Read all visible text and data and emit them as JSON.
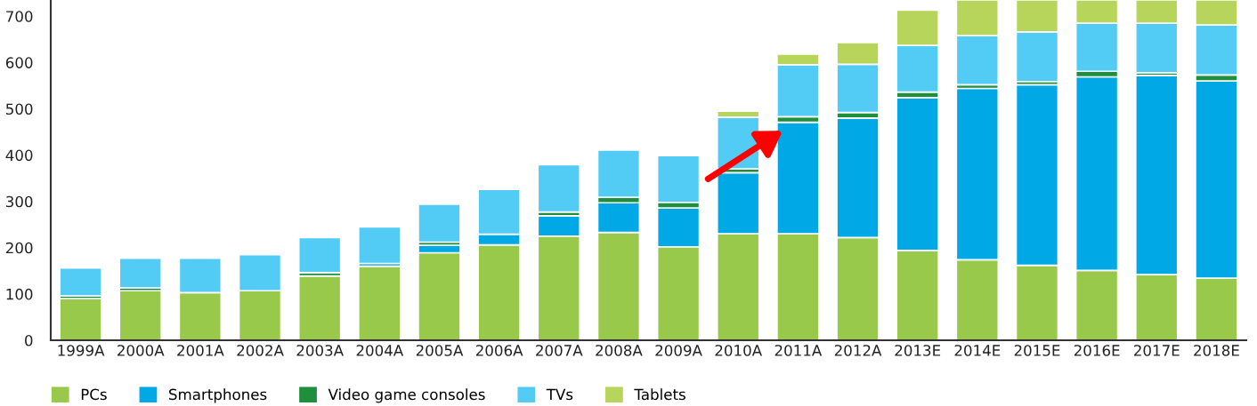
{
  "chart_data": {
    "type": "bar",
    "stacked": true,
    "categories": [
      "1999A",
      "2000A",
      "2001A",
      "2002A",
      "2003A",
      "2004A",
      "2005A",
      "2006A",
      "2007A",
      "2008A",
      "2009A",
      "2010A",
      "2011A",
      "2012A",
      "2013E",
      "2014E",
      "2015E",
      "2016E",
      "2017E",
      "2018E"
    ],
    "series": [
      {
        "name": "PCs",
        "color": "#99c94a",
        "values": [
          90,
          107,
          103,
          107,
          139,
          160,
          189,
          206,
          225,
          233,
          202,
          230,
          230,
          222,
          194,
          174,
          162,
          151,
          142,
          134
        ]
      },
      {
        "name": "Smartphones",
        "color": "#00a9e6",
        "values": [
          null,
          null,
          null,
          null,
          null,
          6,
          16,
          23,
          44,
          64,
          84,
          132,
          241,
          258,
          330,
          370,
          390,
          418,
          430,
          426
        ]
      },
      {
        "name": "Video game consoles",
        "color": "#1e8f3c",
        "values": [
          6,
          6,
          null,
          null,
          7,
          null,
          7,
          null,
          8,
          12,
          12,
          8,
          12,
          12,
          12,
          8,
          7,
          12,
          6,
          13
        ]
      },
      {
        "name": "TVs",
        "color": "#52cbf5",
        "values": [
          60,
          64,
          74,
          78,
          76,
          79,
          82,
          97,
          102,
          102,
          101,
          112,
          112,
          104,
          101,
          106,
          107,
          104,
          107,
          108
        ]
      },
      {
        "name": "Tablets",
        "color": "#b7d55a",
        "values": [
          null,
          null,
          null,
          null,
          null,
          null,
          null,
          null,
          null,
          null,
          null,
          13,
          23,
          47,
          76,
          77,
          69,
          50,
          50,
          54
        ]
      }
    ],
    "ylim": [
      0,
      735
    ],
    "yticks": [
      0,
      100,
      200,
      300,
      400,
      500,
      600,
      700
    ],
    "grid": false,
    "legend": "bottom"
  }
}
